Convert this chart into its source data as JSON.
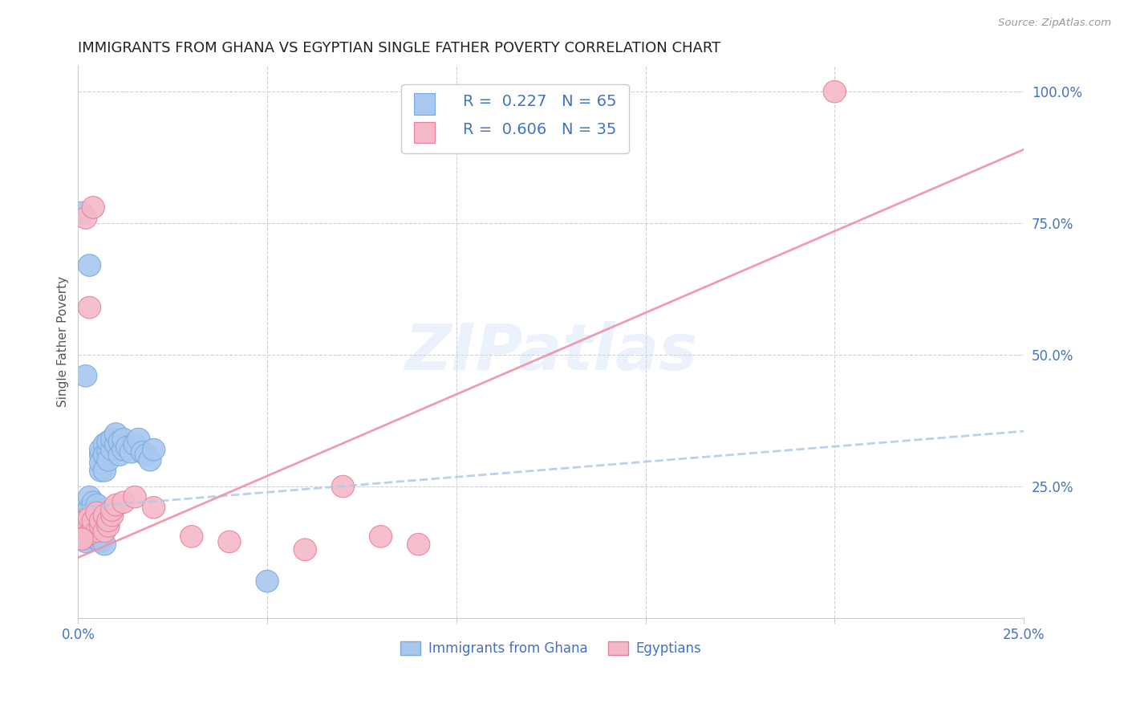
{
  "title": "IMMIGRANTS FROM GHANA VS EGYPTIAN SINGLE FATHER POVERTY CORRELATION CHART",
  "source": "Source: ZipAtlas.com",
  "ylabel": "Single Father Poverty",
  "background_color": "#ffffff",
  "watermark": "ZIPatlas",
  "legend_blue_r": "0.227",
  "legend_blue_n": "65",
  "legend_pink_r": "0.606",
  "legend_pink_n": "35",
  "blue_color": "#a8c8f0",
  "pink_color": "#f5b8c8",
  "blue_edge_color": "#7aaade",
  "pink_edge_color": "#e8809a",
  "blue_line_color": "#b0c8e8",
  "pink_line_color": "#f090aa",
  "text_color": "#4472c4",
  "xlim": [
    0.0,
    0.25
  ],
  "ylim": [
    0.0,
    1.05
  ],
  "blue_scatter_x": [
    0.001,
    0.001,
    0.001,
    0.001,
    0.002,
    0.002,
    0.002,
    0.002,
    0.002,
    0.003,
    0.003,
    0.003,
    0.003,
    0.003,
    0.003,
    0.004,
    0.004,
    0.004,
    0.004,
    0.004,
    0.005,
    0.005,
    0.005,
    0.005,
    0.006,
    0.006,
    0.006,
    0.006,
    0.007,
    0.007,
    0.007,
    0.008,
    0.008,
    0.008,
    0.009,
    0.009,
    0.01,
    0.01,
    0.011,
    0.011,
    0.012,
    0.012,
    0.013,
    0.014,
    0.015,
    0.016,
    0.017,
    0.018,
    0.019,
    0.02,
    0.001,
    0.002,
    0.003,
    0.004,
    0.002,
    0.003,
    0.004,
    0.005,
    0.006,
    0.007,
    0.001,
    0.002,
    0.003,
    0.05,
    0.001
  ],
  "blue_scatter_y": [
    0.175,
    0.185,
    0.195,
    0.165,
    0.18,
    0.19,
    0.17,
    0.2,
    0.16,
    0.185,
    0.195,
    0.175,
    0.21,
    0.165,
    0.23,
    0.185,
    0.195,
    0.175,
    0.22,
    0.2,
    0.185,
    0.2,
    0.215,
    0.17,
    0.31,
    0.32,
    0.28,
    0.295,
    0.33,
    0.31,
    0.28,
    0.315,
    0.335,
    0.3,
    0.32,
    0.34,
    0.33,
    0.35,
    0.31,
    0.335,
    0.32,
    0.34,
    0.325,
    0.315,
    0.33,
    0.34,
    0.315,
    0.31,
    0.3,
    0.32,
    0.155,
    0.15,
    0.16,
    0.165,
    0.145,
    0.155,
    0.16,
    0.15,
    0.145,
    0.14,
    0.77,
    0.46,
    0.67,
    0.07,
    0.155
  ],
  "pink_scatter_x": [
    0.001,
    0.001,
    0.002,
    0.002,
    0.002,
    0.003,
    0.003,
    0.003,
    0.004,
    0.004,
    0.005,
    0.005,
    0.006,
    0.006,
    0.007,
    0.007,
    0.008,
    0.008,
    0.009,
    0.009,
    0.01,
    0.012,
    0.015,
    0.02,
    0.03,
    0.04,
    0.06,
    0.07,
    0.08,
    0.09,
    0.002,
    0.003,
    0.004,
    0.2,
    0.001
  ],
  "pink_scatter_y": [
    0.165,
    0.18,
    0.17,
    0.185,
    0.155,
    0.175,
    0.19,
    0.16,
    0.17,
    0.185,
    0.2,
    0.165,
    0.175,
    0.185,
    0.195,
    0.165,
    0.175,
    0.185,
    0.195,
    0.205,
    0.215,
    0.22,
    0.23,
    0.21,
    0.155,
    0.145,
    0.13,
    0.25,
    0.155,
    0.14,
    0.76,
    0.59,
    0.78,
    1.0,
    0.15
  ],
  "blue_line_x": [
    0.0,
    0.25
  ],
  "blue_line_y": [
    0.21,
    0.355
  ],
  "pink_line_x": [
    0.0,
    0.25
  ],
  "pink_line_y": [
    0.115,
    0.89
  ],
  "xtick_positions": [
    0.0,
    0.05,
    0.1,
    0.15,
    0.2,
    0.25
  ],
  "ytick_positions": [
    0.25,
    0.5,
    0.75,
    1.0
  ],
  "ytick_labels": [
    "25.0%",
    "50.0%",
    "75.0%",
    "100.0%"
  ]
}
